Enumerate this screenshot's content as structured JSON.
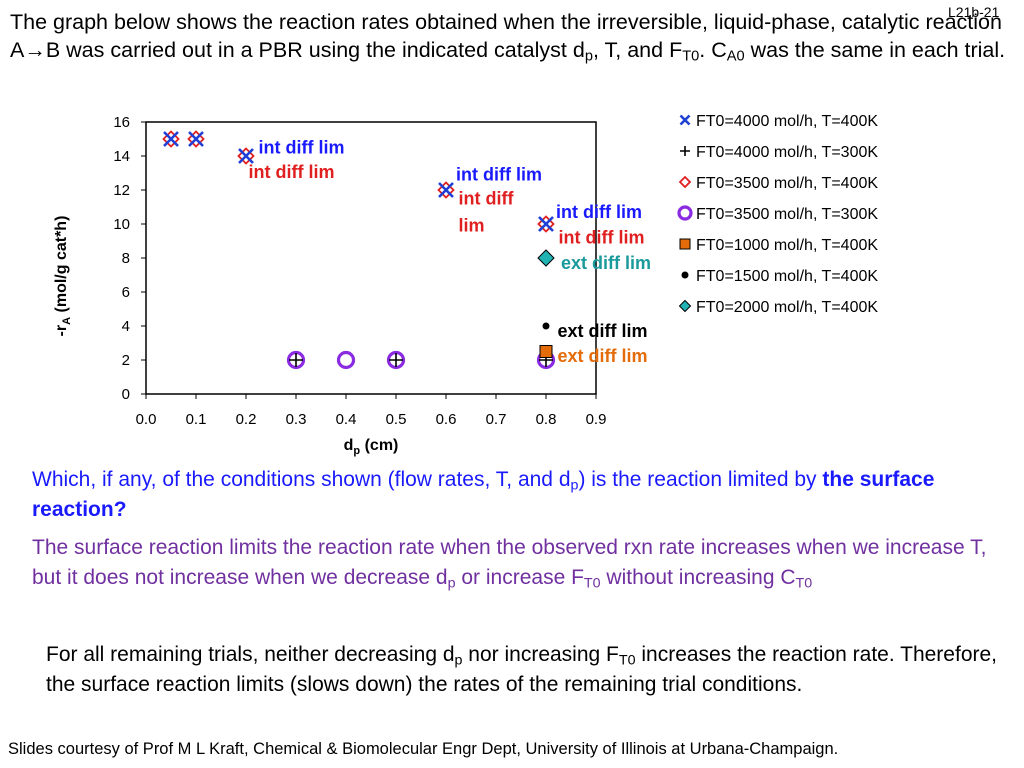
{
  "slide_tag": "L21b-21",
  "intro": {
    "p1": "The graph below shows the reaction rates obtained when the irreversible, liquid-phase, catalytic reaction A→B was carried out in a PBR using the indicated catalyst d",
    "sub_p": "p",
    "p2": ", T, and F",
    "sub_t0": "T0",
    "p3": ". C",
    "sub_a0": "A0",
    "p4": " was the same in each trial."
  },
  "question": {
    "t1": "Which, if any, of the conditions shown (flow rates, T, and d",
    "sub_p": "p",
    "t2": ") is the reaction limited by ",
    "bold": "the surface reaction?"
  },
  "answer1": {
    "t1": "The surface reaction limits the reaction rate when the observed rxn rate increases when we increase T, but it does not increase when we decrease d",
    "sub_p": "p",
    "t2": " or increase F",
    "sub_t0": "T0",
    "t3": " without increasing C",
    "sub_t0b": "T0"
  },
  "answer2": {
    "t1": "For all remaining trials, neither decreasing d",
    "sub_p": "p",
    "t2": " nor increasing F",
    "sub_t0": "T0",
    "t3": " increases the reaction rate.  Therefore, the surface reaction limits (slows down) the rates of the remaining trial conditions."
  },
  "footer": "Slides courtesy of Prof M L Kraft, Chemical & Biomolecular Engr Dept, University of Illinois at Urbana-Champaign.",
  "chart_data": {
    "type": "scatter",
    "xlabel": "d",
    "xlabel_sub": "p",
    "xlabel_unit": " (cm)",
    "ylabel": "-r",
    "ylabel_sub": "A",
    "ylabel_unit": " (mol/g cat*h)",
    "xlim": [
      0,
      0.9
    ],
    "ylim": [
      0,
      16
    ],
    "x_ticks": [
      0,
      0.1,
      0.2,
      0.3,
      0.4,
      0.5,
      0.6,
      0.7,
      0.8,
      0.9
    ],
    "x_tick_labels": [
      "0.0",
      "0.1",
      "0.2",
      "0.3",
      "0.4",
      "0.5",
      "0.6",
      "0.7",
      "0.8",
      "0.9"
    ],
    "y_ticks": [
      0,
      2,
      4,
      6,
      8,
      10,
      12,
      14,
      16
    ],
    "y_tick_labels": [
      "0",
      "2",
      "4",
      "6",
      "8",
      "10",
      "12",
      "14",
      "16"
    ],
    "grid": false,
    "legend_position": "right",
    "series": [
      {
        "name": "FT0=4000 mol/h, T=400K",
        "marker": "x",
        "color": "#1f3fd6",
        "x": [
          0.05,
          0.1,
          0.2,
          0.6,
          0.8
        ],
        "y": [
          15,
          15,
          14,
          12,
          10
        ]
      },
      {
        "name": "FT0=4000 mol/h, T=300K",
        "marker": "plus",
        "color": "#000000",
        "x": [
          0.3,
          0.5,
          0.8
        ],
        "y": [
          2,
          2,
          2
        ]
      },
      {
        "name": "FT0=3500 mol/h, T=400K",
        "marker": "diamond-open",
        "color": "#e02020",
        "x": [
          0.05,
          0.1,
          0.2,
          0.6,
          0.8
        ],
        "y": [
          15,
          15,
          14,
          12,
          10
        ]
      },
      {
        "name": "FT0=3500 mol/h, T=300K",
        "marker": "circle-open",
        "color": "#8a2be2",
        "x": [
          0.3,
          0.4,
          0.5,
          0.8
        ],
        "y": [
          2,
          2,
          2,
          2
        ]
      },
      {
        "name": "FT0=1000 mol/h, T=400K",
        "marker": "square",
        "color": "#e46c0a",
        "x": [
          0.8
        ],
        "y": [
          2.5
        ]
      },
      {
        "name": "FT0=1500 mol/h, T=400K",
        "marker": "circle",
        "color": "#000000",
        "x": [
          0.8
        ],
        "y": [
          4
        ]
      },
      {
        "name": "FT0=2000 mol/h, T=400K",
        "marker": "diamond",
        "color": "#21b3b3",
        "x": [
          0.8
        ],
        "y": [
          8
        ]
      }
    ],
    "annotations": [
      {
        "text": "int diff lim",
        "color": "#1a1aff",
        "x": 0.225,
        "y": 14.5
      },
      {
        "text": "int diff lim",
        "color": "#e02020",
        "x": 0.205,
        "y": 13.05
      },
      {
        "text": "int diff lim",
        "color": "#1a1aff",
        "x": 0.62,
        "y": 12.9
      },
      {
        "text": "int diff",
        "color": "#e02020",
        "x": 0.625,
        "y": 11.5
      },
      {
        "text": "lim",
        "color": "#e02020",
        "x": 0.625,
        "y": 9.9
      },
      {
        "text": "int diff lim",
        "color": "#1a1aff",
        "x": 0.82,
        "y": 10.7
      },
      {
        "text": "int diff lim",
        "color": "#e02020",
        "x": 0.825,
        "y": 9.2
      },
      {
        "text": "ext diff lim",
        "color": "#1a9a9a",
        "x": 0.83,
        "y": 7.7
      },
      {
        "text": "ext diff lim",
        "color": "#000000",
        "x": 0.823,
        "y": 3.7
      },
      {
        "text": "ext diff lim",
        "color": "#e46c0a",
        "x": 0.823,
        "y": 2.25
      }
    ]
  }
}
